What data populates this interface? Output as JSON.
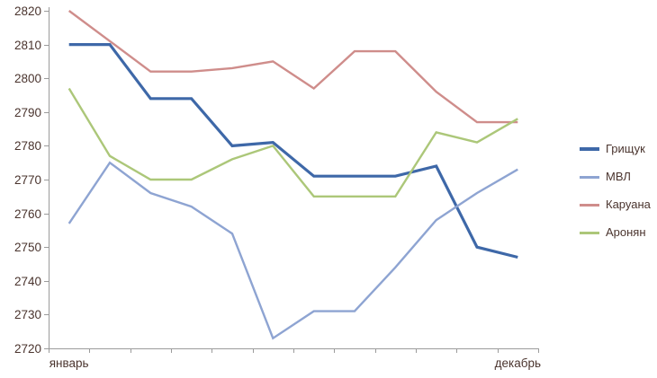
{
  "chart_data": {
    "type": "line",
    "title": "",
    "x_axis_labels": [
      "январь",
      "декабрь"
    ],
    "x_point_count": 12,
    "y_axis": {
      "min": 2720,
      "max": 2820,
      "step": 10
    },
    "ylim": [
      2720,
      2820
    ],
    "grid": false,
    "legend_position": "right",
    "series": [
      {
        "id": "grischuk",
        "name": "Грищук",
        "color": "#3E68A8",
        "line_width": 3.2,
        "values": [
          2810,
          2810,
          2794,
          2794,
          2780,
          2781,
          2771,
          2771,
          2771,
          2774,
          2750,
          2747
        ]
      },
      {
        "id": "mvl",
        "name": "МВЛ",
        "color": "#8EA4D2",
        "line_width": 2.4,
        "values": [
          2757,
          2775,
          2766,
          2762,
          2754,
          2723,
          2731,
          2731,
          2744,
          2758,
          2766,
          2773
        ]
      },
      {
        "id": "caruana",
        "name": "Каруана",
        "color": "#CF8D8B",
        "line_width": 2.4,
        "values": [
          2820,
          2811,
          2802,
          2802,
          2803,
          2805,
          2797,
          2808,
          2808,
          2796,
          2787,
          2787
        ]
      },
      {
        "id": "aronian",
        "name": "Аронян",
        "color": "#ACC779",
        "line_width": 2.4,
        "values": [
          2797,
          2777,
          2770,
          2770,
          2776,
          2780,
          2765,
          2765,
          2765,
          2784,
          2781,
          2788
        ]
      }
    ],
    "colors": {
      "axis": "#9B9B9B",
      "text": "#4A342E"
    }
  }
}
